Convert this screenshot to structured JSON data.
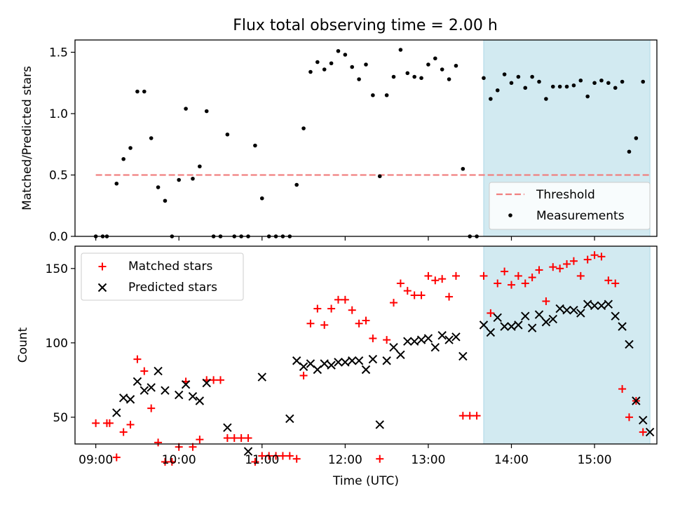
{
  "title": "Flux total observing time = 2.00 h",
  "colors": {
    "measurement": "#000000",
    "threshold": "#f08080",
    "matched": "#ff0000",
    "predicted": "#000000",
    "highlight": "#add8e6"
  },
  "chart_data": [
    {
      "type": "scatter",
      "ylabel": "Matched/Predicted stars",
      "ylim": [
        0,
        1.6
      ],
      "yticks": [
        0.0,
        0.5,
        1.0,
        1.5
      ],
      "ytick_labels": [
        "0.0",
        "0.5",
        "1.0",
        "1.5"
      ],
      "highlight_span": [
        "13:40",
        "15:40"
      ],
      "legend": {
        "placement": "lower right",
        "entries": [
          "Threshold",
          "Measurements"
        ]
      },
      "threshold": {
        "name": "Threshold",
        "x": [
          "09:00",
          "15:40"
        ],
        "y": 0.5,
        "style": "dashed"
      },
      "series": [
        {
          "name": "Measurements",
          "marker": "dot",
          "x": [
            "09:00",
            "09:05",
            "09:08",
            "09:15",
            "09:20",
            "09:25",
            "09:30",
            "09:35",
            "09:40",
            "09:45",
            "09:50",
            "09:55",
            "10:00",
            "10:05",
            "10:10",
            "10:15",
            "10:20",
            "10:25",
            "10:30",
            "10:35",
            "10:40",
            "10:45",
            "10:50",
            "10:55",
            "11:00",
            "11:05",
            "11:10",
            "11:15",
            "11:20",
            "11:25",
            "11:30",
            "11:35",
            "11:40",
            "11:45",
            "11:50",
            "11:55",
            "12:00",
            "12:05",
            "12:10",
            "12:15",
            "12:20",
            "12:25",
            "12:30",
            "12:35",
            "12:40",
            "12:45",
            "12:50",
            "12:55",
            "13:00",
            "13:05",
            "13:10",
            "13:15",
            "13:20",
            "13:25",
            "13:30",
            "13:35",
            "13:40",
            "13:45",
            "13:50",
            "13:55",
            "14:00",
            "14:05",
            "14:10",
            "14:15",
            "14:20",
            "14:25",
            "14:30",
            "14:35",
            "14:40",
            "14:45",
            "14:50",
            "14:55",
            "15:00",
            "15:05",
            "15:10",
            "15:15",
            "15:20",
            "15:25",
            "15:30",
            "15:35"
          ],
          "y": [
            0.0,
            0.0,
            0.0,
            0.43,
            0.63,
            0.72,
            1.18,
            1.18,
            0.8,
            0.4,
            0.29,
            0.0,
            0.46,
            1.04,
            0.47,
            0.57,
            1.02,
            0.0,
            0.0,
            0.83,
            0.0,
            0.0,
            0.0,
            0.74,
            0.31,
            0.0,
            0.0,
            0.0,
            0.0,
            0.42,
            0.88,
            1.34,
            1.42,
            1.36,
            1.41,
            1.51,
            1.48,
            1.38,
            1.28,
            1.4,
            1.15,
            0.49,
            1.15,
            1.3,
            1.52,
            1.33,
            1.3,
            1.29,
            1.4,
            1.45,
            1.36,
            1.28,
            1.39,
            0.55,
            0.0,
            0.0,
            1.29,
            1.12,
            1.19,
            1.32,
            1.25,
            1.3,
            1.21,
            1.3,
            1.26,
            1.12,
            1.22,
            1.22,
            1.22,
            1.23,
            1.27,
            1.14,
            1.25,
            1.27,
            1.25,
            1.21,
            1.26,
            0.69,
            0.8,
            1.26
          ]
        }
      ]
    },
    {
      "type": "scatter",
      "xlabel": "Time (UTC)",
      "ylabel": "Count",
      "ylim": [
        32,
        165
      ],
      "yticks": [
        50,
        100,
        150
      ],
      "ytick_labels": [
        "50",
        "100",
        "150"
      ],
      "xlim": [
        "08:45",
        "15:45"
      ],
      "xticks": [
        "09:00",
        "10:00",
        "11:00",
        "12:00",
        "13:00",
        "14:00",
        "15:00"
      ],
      "xtick_labels": [
        "09:00",
        "10:00",
        "11:00",
        "12:00",
        "13:00",
        "14:00",
        "15:00"
      ],
      "highlight_span": [
        "13:40",
        "15:40"
      ],
      "legend": {
        "placement": "upper left",
        "entries": [
          "Matched stars",
          "Predicted stars"
        ]
      },
      "series": [
        {
          "name": "Matched stars",
          "marker": "plus",
          "x": [
            "09:00",
            "09:08",
            "09:10",
            "09:15",
            "09:20",
            "09:25",
            "09:30",
            "09:35",
            "09:40",
            "09:45",
            "09:50",
            "09:55",
            "10:00",
            "10:05",
            "10:10",
            "10:15",
            "10:20",
            "10:25",
            "10:30",
            "10:35",
            "10:40",
            "10:45",
            "10:50",
            "10:55",
            "11:00",
            "11:05",
            "11:10",
            "11:15",
            "11:20",
            "11:25",
            "11:30",
            "11:35",
            "11:40",
            "11:45",
            "11:50",
            "11:55",
            "12:00",
            "12:05",
            "12:10",
            "12:15",
            "12:20",
            "12:25",
            "12:30",
            "12:35",
            "12:40",
            "12:45",
            "12:50",
            "12:55",
            "13:00",
            "13:05",
            "13:10",
            "13:15",
            "13:20",
            "13:25",
            "13:30",
            "13:35",
            "13:40",
            "13:45",
            "13:50",
            "13:55",
            "14:00",
            "14:05",
            "14:10",
            "14:15",
            "14:20",
            "14:25",
            "14:30",
            "14:35",
            "14:40",
            "14:45",
            "14:50",
            "14:55",
            "15:00",
            "15:05",
            "15:10",
            "15:15",
            "15:20",
            "15:25",
            "15:30",
            "15:35"
          ],
          "y": [
            46,
            46,
            46,
            23,
            40,
            45,
            89,
            81,
            56,
            33,
            20,
            20,
            30,
            74,
            30,
            35,
            75,
            75,
            75,
            36,
            36,
            36,
            36,
            20,
            24,
            24,
            24,
            24,
            24,
            22,
            78,
            113,
            123,
            112,
            123,
            129,
            129,
            122,
            113,
            115,
            103,
            22,
            102,
            127,
            140,
            135,
            132,
            132,
            145,
            142,
            143,
            131,
            145,
            51,
            51,
            51,
            145,
            120,
            140,
            148,
            139,
            145,
            140,
            144,
            149,
            128,
            151,
            150,
            153,
            155,
            145,
            156,
            159,
            158,
            142,
            140,
            69,
            50,
            61,
            40
          ]
        },
        {
          "name": "Predicted stars",
          "marker": "x",
          "x": [
            "09:15",
            "09:20",
            "09:25",
            "09:30",
            "09:35",
            "09:40",
            "09:45",
            "09:50",
            "10:00",
            "10:05",
            "10:10",
            "10:15",
            "10:20",
            "10:35",
            "10:50",
            "11:00",
            "11:20",
            "11:25",
            "11:30",
            "11:35",
            "11:40",
            "11:45",
            "11:50",
            "11:55",
            "12:00",
            "12:05",
            "12:10",
            "12:15",
            "12:20",
            "12:25",
            "12:30",
            "12:35",
            "12:40",
            "12:45",
            "12:50",
            "12:55",
            "13:00",
            "13:05",
            "13:10",
            "13:15",
            "13:20",
            "13:25",
            "13:40",
            "13:45",
            "13:50",
            "13:55",
            "14:00",
            "14:05",
            "14:10",
            "14:15",
            "14:20",
            "14:25",
            "14:30",
            "14:35",
            "14:40",
            "14:45",
            "14:50",
            "14:55",
            "15:00",
            "15:05",
            "15:10",
            "15:15",
            "15:20",
            "15:25",
            "15:30",
            "15:35",
            "15:40"
          ],
          "y": [
            53,
            63,
            62,
            74,
            68,
            70,
            81,
            68,
            65,
            72,
            64,
            61,
            73,
            43,
            27,
            77,
            49,
            88,
            84,
            86,
            82,
            86,
            85,
            87,
            87,
            88,
            88,
            82,
            89,
            45,
            88,
            97,
            92,
            101,
            101,
            102,
            103,
            97,
            105,
            102,
            104,
            91,
            112,
            107,
            117,
            111,
            111,
            112,
            118,
            110,
            119,
            114,
            116,
            123,
            122,
            122,
            120,
            126,
            125,
            125,
            126,
            118,
            111,
            99,
            61,
            48,
            40
          ]
        }
      ]
    }
  ]
}
